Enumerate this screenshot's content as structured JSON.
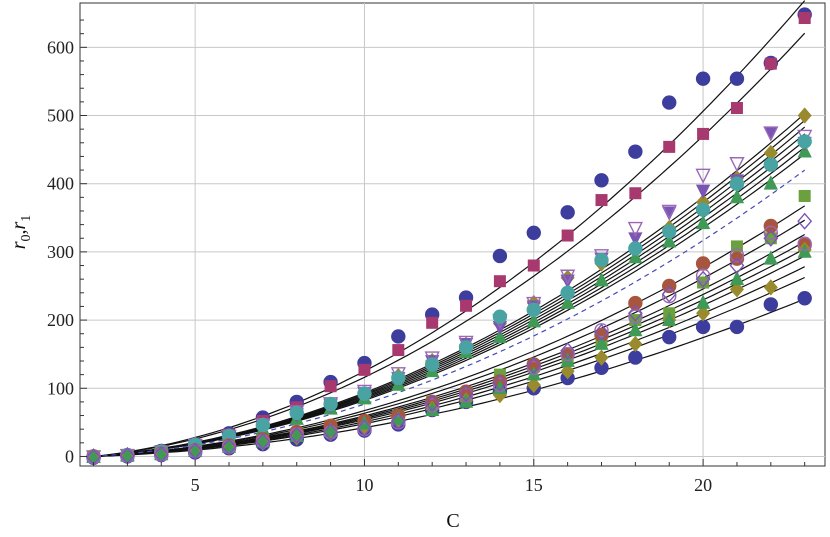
{
  "chart_data": {
    "type": "scatter",
    "title": "",
    "xlabel": "C",
    "ylabel_main": "r",
    "ylabel_sub0": "0",
    "ylabel_sep": ",",
    "ylabel_main2": "r",
    "ylabel_sub1": "1",
    "xlim": [
      1.6,
      23.6
    ],
    "ylim": [
      -14,
      665
    ],
    "xticks": [
      5,
      10,
      15,
      20
    ],
    "yticks": [
      0,
      100,
      200,
      300,
      400,
      500,
      600
    ],
    "grid": true,
    "series": [
      {
        "marker": "circle",
        "color": "#3d3d9e",
        "x": [
          2,
          3,
          4,
          5,
          6,
          7,
          8,
          9,
          10,
          11,
          12,
          13,
          14,
          15,
          16,
          17,
          18,
          19,
          20,
          21,
          22,
          23
        ],
        "y": [
          0,
          2,
          8,
          18,
          34,
          57,
          80,
          109,
          137,
          176,
          208,
          233,
          294,
          328,
          358,
          405,
          447,
          519,
          554,
          554,
          577,
          648
        ]
      },
      {
        "marker": "square",
        "color": "#a8396f",
        "x": [
          2,
          3,
          4,
          5,
          6,
          7,
          8,
          9,
          10,
          11,
          12,
          13,
          14,
          15,
          16,
          17,
          18,
          19,
          20,
          21,
          22,
          23
        ],
        "y": [
          0,
          2,
          8,
          17,
          32,
          52,
          72,
          103,
          127,
          156,
          196,
          221,
          257,
          280,
          324,
          376,
          386,
          454,
          473,
          511,
          576,
          643
        ]
      },
      {
        "marker": "diamond",
        "color": "#9a8a2e",
        "x": [
          2,
          3,
          4,
          5,
          6,
          7,
          8,
          9,
          10,
          11,
          12,
          13,
          14,
          15,
          16,
          17,
          18,
          19,
          20,
          21,
          22,
          23
        ],
        "y": [
          0,
          2,
          7,
          17,
          30,
          46,
          64,
          75,
          90,
          118,
          140,
          164,
          195,
          225,
          262,
          283,
          305,
          335,
          373,
          408,
          445,
          500
        ]
      },
      {
        "marker": "triangle-up",
        "color": "#3f9a55",
        "x": [
          2,
          3,
          4,
          5,
          6,
          7,
          8,
          9,
          10,
          11,
          12,
          13,
          14,
          15,
          16,
          17,
          18,
          19,
          20,
          21,
          22,
          23
        ],
        "y": [
          0,
          2,
          6,
          15,
          26,
          40,
          55,
          70,
          85,
          105,
          125,
          153,
          175,
          198,
          225,
          258,
          292,
          315,
          342,
          380,
          400,
          447
        ]
      },
      {
        "marker": "triangle-down",
        "color": "#7b55b3",
        "x": [
          2,
          3,
          4,
          5,
          6,
          7,
          8,
          9,
          10,
          11,
          12,
          13,
          14,
          15,
          16,
          17,
          18,
          19,
          20,
          21,
          22,
          23
        ],
        "y": [
          0,
          2,
          7,
          16,
          29,
          45,
          62,
          75,
          93,
          115,
          140,
          165,
          190,
          220,
          258,
          290,
          320,
          358,
          390,
          405,
          475,
          460
        ]
      },
      {
        "marker": "open-triangle-down",
        "color": "#9a68b8",
        "x": [
          2,
          3,
          4,
          5,
          6,
          7,
          8,
          9,
          10,
          11,
          12,
          13,
          14,
          15,
          16,
          17,
          18,
          19,
          20,
          21,
          22,
          23
        ],
        "y": [
          0,
          2,
          7,
          17,
          30,
          47,
          66,
          78,
          96,
          122,
          145,
          168,
          200,
          225,
          265,
          295,
          335,
          360,
          413,
          430,
          475,
          470
        ]
      },
      {
        "marker": "circle",
        "color": "#4aa3a3",
        "x": [
          2,
          3,
          4,
          5,
          6,
          7,
          8,
          9,
          10,
          11,
          12,
          13,
          14,
          15,
          16,
          17,
          18,
          19,
          20,
          21,
          22,
          23
        ],
        "y": [
          0,
          2,
          7,
          17,
          30,
          46,
          64,
          77,
          92,
          115,
          135,
          160,
          205,
          215,
          240,
          288,
          305,
          330,
          362,
          400,
          428,
          462
        ]
      },
      {
        "marker": "square",
        "color": "#6aa03e",
        "x": [
          2,
          3,
          4,
          5,
          6,
          7,
          8,
          9,
          10,
          11,
          12,
          13,
          14,
          15,
          16,
          17,
          18,
          19,
          20,
          21,
          22,
          23
        ],
        "y": [
          0,
          1,
          4,
          9,
          16,
          24,
          34,
          45,
          50,
          60,
          80,
          90,
          120,
          132,
          145,
          170,
          200,
          210,
          255,
          308,
          320,
          382
        ]
      },
      {
        "marker": "circle",
        "color": "#a8553f",
        "x": [
          2,
          3,
          4,
          5,
          6,
          7,
          8,
          9,
          10,
          11,
          12,
          13,
          14,
          15,
          16,
          17,
          18,
          19,
          20,
          21,
          22,
          23
        ],
        "y": [
          0,
          1,
          4,
          9,
          16,
          25,
          36,
          45,
          52,
          60,
          80,
          95,
          110,
          135,
          150,
          178,
          225,
          250,
          283,
          290,
          338,
          310
        ]
      },
      {
        "marker": "circle",
        "color": "#3d3d9e",
        "x": [
          2,
          3,
          4,
          5,
          6,
          7,
          8,
          9,
          10,
          11,
          12,
          13,
          14,
          15,
          16,
          17,
          18,
          19,
          20,
          21,
          22,
          23
        ],
        "y": [
          -2,
          0,
          2,
          6,
          12,
          18,
          25,
          32,
          38,
          47,
          68,
          80,
          95,
          100,
          115,
          130,
          145,
          175,
          190,
          190,
          223,
          232
        ]
      },
      {
        "marker": "diamond",
        "color": "#9a8a2e",
        "x": [
          2,
          3,
          4,
          5,
          6,
          7,
          8,
          9,
          10,
          11,
          12,
          13,
          14,
          15,
          16,
          17,
          18,
          19,
          20,
          21,
          22,
          23
        ],
        "y": [
          -1,
          1,
          3,
          7,
          13,
          20,
          28,
          34,
          43,
          53,
          70,
          82,
          90,
          105,
          125,
          145,
          165,
          200,
          210,
          245,
          248,
          303
        ]
      },
      {
        "marker": "triangle-up",
        "color": "#3f9a55",
        "x": [
          2,
          3,
          4,
          5,
          6,
          7,
          8,
          9,
          10,
          11,
          12,
          13,
          14,
          15,
          16,
          17,
          18,
          19,
          20,
          21,
          22,
          23
        ],
        "y": [
          -1,
          1,
          3,
          8,
          14,
          22,
          30,
          38,
          48,
          55,
          68,
          80,
          100,
          120,
          140,
          165,
          185,
          200,
          225,
          260,
          290,
          300
        ]
      },
      {
        "marker": "open-circle",
        "color": "#9a68b8",
        "x": [
          2,
          3,
          4,
          5,
          6,
          7,
          8,
          9,
          10,
          11,
          12,
          13,
          14,
          15,
          16,
          17,
          18,
          19,
          20,
          21,
          22,
          23
        ],
        "y": [
          -1,
          1,
          3,
          8,
          14,
          22,
          32,
          35,
          40,
          50,
          75,
          90,
          105,
          130,
          150,
          185,
          205,
          235,
          265,
          295,
          328,
          312
        ]
      },
      {
        "marker": "open-diamond",
        "color": "#7b55b3",
        "x": [
          2,
          3,
          4,
          5,
          6,
          7,
          8,
          9,
          10,
          11,
          12,
          13,
          14,
          15,
          16,
          17,
          18,
          19,
          20,
          21,
          22,
          23
        ],
        "y": [
          -1,
          1,
          3,
          8,
          14,
          22,
          31,
          36,
          42,
          52,
          78,
          92,
          108,
          133,
          155,
          182,
          210,
          238,
          260,
          280,
          320,
          345
        ]
      }
    ],
    "curves": [
      {
        "style": "solid",
        "k": 1.4,
        "p": 1.97
      },
      {
        "style": "solid",
        "k": 1.3,
        "p": 1.97
      },
      {
        "style": "solid",
        "k": 1.02,
        "p": 1.98
      },
      {
        "style": "solid",
        "k": 1.0,
        "p": 1.98
      },
      {
        "style": "solid",
        "k": 0.98,
        "p": 1.98
      },
      {
        "style": "solid",
        "k": 0.96,
        "p": 1.98
      },
      {
        "style": "solid",
        "k": 0.94,
        "p": 1.98
      },
      {
        "style": "solid",
        "k": 0.92,
        "p": 1.98
      },
      {
        "style": "solid",
        "k": 0.9,
        "p": 1.98
      },
      {
        "style": "solid",
        "k": 0.7,
        "p": 2.0
      },
      {
        "style": "solid",
        "k": 0.66,
        "p": 2.0
      },
      {
        "style": "solid",
        "k": 0.62,
        "p": 2.0
      },
      {
        "style": "solid",
        "k": 0.6,
        "p": 2.0
      },
      {
        "style": "solid",
        "k": 0.58,
        "p": 2.0
      },
      {
        "style": "solid",
        "k": 0.56,
        "p": 2.0
      },
      {
        "style": "solid",
        "k": 0.53,
        "p": 2.0
      },
      {
        "style": "solid",
        "k": 0.5,
        "p": 2.0
      },
      {
        "style": "solid",
        "k": 0.44,
        "p": 2.0
      },
      {
        "style": "dashed",
        "color": "#4848b8",
        "k": 0.8,
        "p": 2.0
      }
    ]
  }
}
